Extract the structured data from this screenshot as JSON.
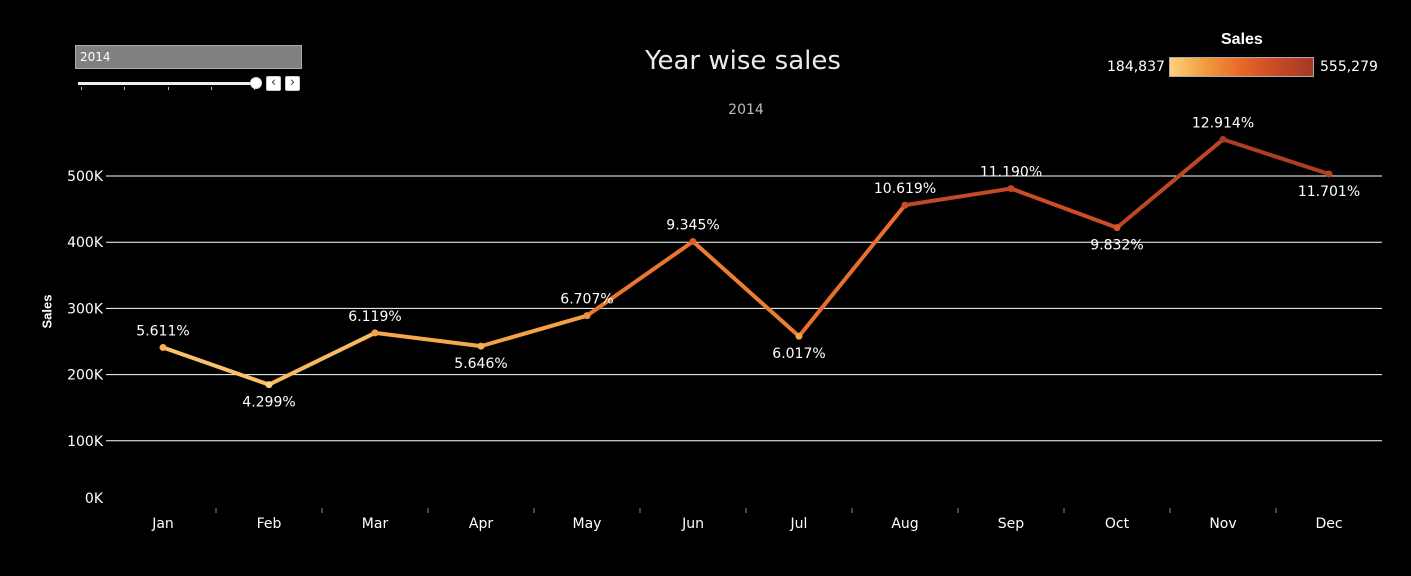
{
  "filter": {
    "year_value": "2014",
    "prev_icon": "chevron-left-icon",
    "next_icon": "chevron-right-icon"
  },
  "chart_data": {
    "type": "line",
    "title": "Year wise sales",
    "subtitle": "2014",
    "ylabel": "Sales",
    "xlabel": "",
    "ylim": [
      0,
      550000
    ],
    "yticks": [
      0,
      100000,
      200000,
      300000,
      400000,
      500000
    ],
    "ytick_labels": [
      "0K",
      "100K",
      "200K",
      "300K",
      "400K",
      "500K"
    ],
    "categories": [
      "Jan",
      "Feb",
      "Mar",
      "Apr",
      "May",
      "Jun",
      "Jul",
      "Aug",
      "Sep",
      "Oct",
      "Nov",
      "Dec"
    ],
    "values": [
      241000,
      184837,
      263000,
      243000,
      289000,
      401000,
      258000,
      456000,
      481000,
      422000,
      555279,
      503000
    ],
    "data_labels": [
      "5.611%",
      "4.299%",
      "6.119%",
      "5.646%",
      "6.707%",
      "9.345%",
      "6.017%",
      "10.619%",
      "11.190%",
      "9.832%",
      "12.914%",
      "11.701%"
    ],
    "grid": true,
    "legend": {
      "title": "Sales",
      "min_label": "184,837",
      "max_label": "555,279",
      "min": 184837,
      "max": 555279,
      "colors": [
        "#fdd27a",
        "#f19a3e",
        "#e8672a",
        "#c64a26",
        "#a33a25"
      ],
      "placement": "top-right"
    }
  }
}
